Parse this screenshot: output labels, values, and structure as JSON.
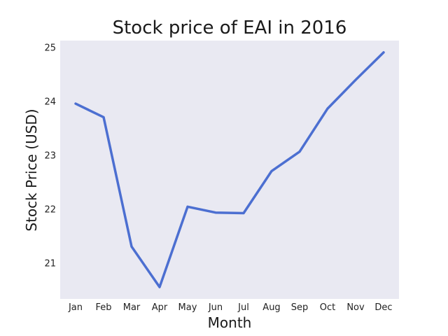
{
  "chart_data": {
    "type": "line",
    "title": "Stock price of EAI in 2016",
    "xlabel": "Month",
    "ylabel": "Stock Price (USD)",
    "categories": [
      "Jan",
      "Feb",
      "Mar",
      "Apr",
      "May",
      "Jun",
      "Jul",
      "Aug",
      "Sep",
      "Oct",
      "Nov",
      "Dec"
    ],
    "series": [
      {
        "values": [
          23.96,
          23.71,
          21.31,
          20.56,
          22.05,
          21.94,
          21.93,
          22.71,
          23.07,
          23.87,
          24.4,
          24.91
        ],
        "color": "#4c6fd1"
      }
    ],
    "ylim": [
      20.34,
      25.13
    ],
    "yticks": [
      21,
      22,
      23,
      24,
      25
    ],
    "grid": false,
    "legend": "none",
    "plot_background": "#e9e9f2"
  }
}
